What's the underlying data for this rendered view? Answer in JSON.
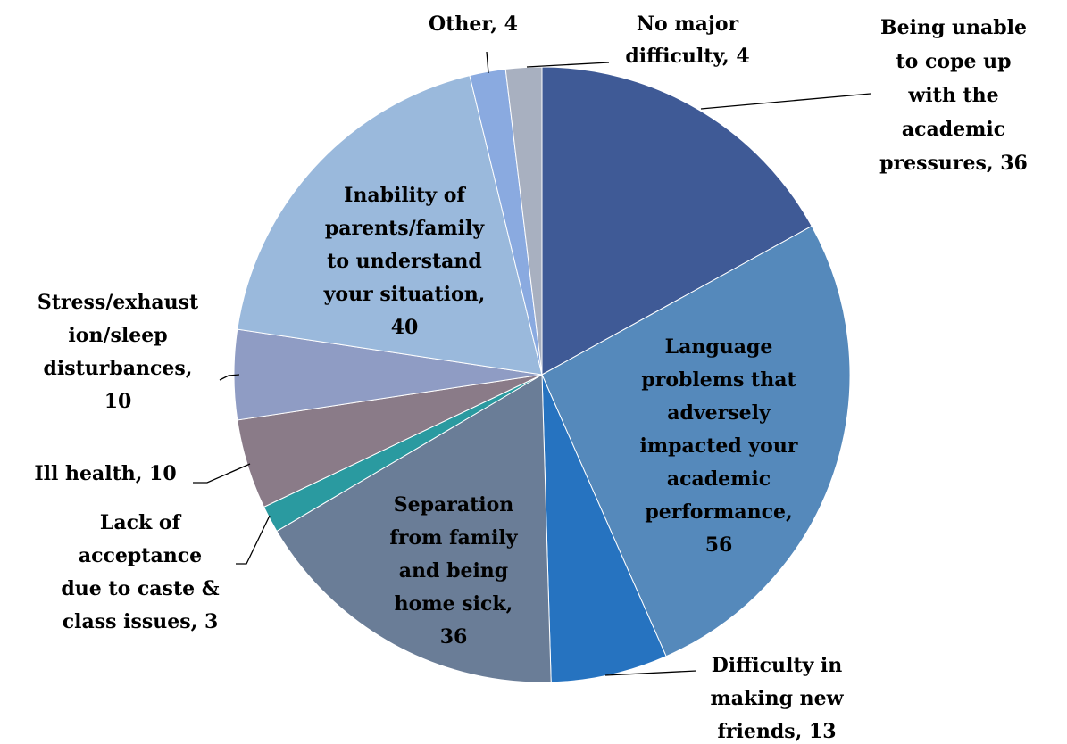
{
  "chart_data": {
    "type": "pie",
    "categories": [
      "Being unable to cope up with the academic pressures",
      "Language problems that adversely impacted your academic performance",
      "Difficulty in making new friends",
      "Separation from family and being home sick",
      "Lack of acceptance due to caste & class issues",
      "Ill health",
      "Stress/exhaustion/sleep disturbances",
      "Inability of parents/family to understand your situation",
      "Other",
      "No major difficulty"
    ],
    "values": [
      36,
      56,
      13,
      36,
      3,
      10,
      10,
      40,
      4,
      4
    ],
    "colors": [
      "#3f5a96",
      "#5589bb",
      "#2673c0",
      "#6a7d97",
      "#2a9aa0",
      "#8a7b88",
      "#8f9cc4",
      "#9ab9dc",
      "#8aaae0",
      "#a8b0c0"
    ],
    "label_separator": ", "
  }
}
